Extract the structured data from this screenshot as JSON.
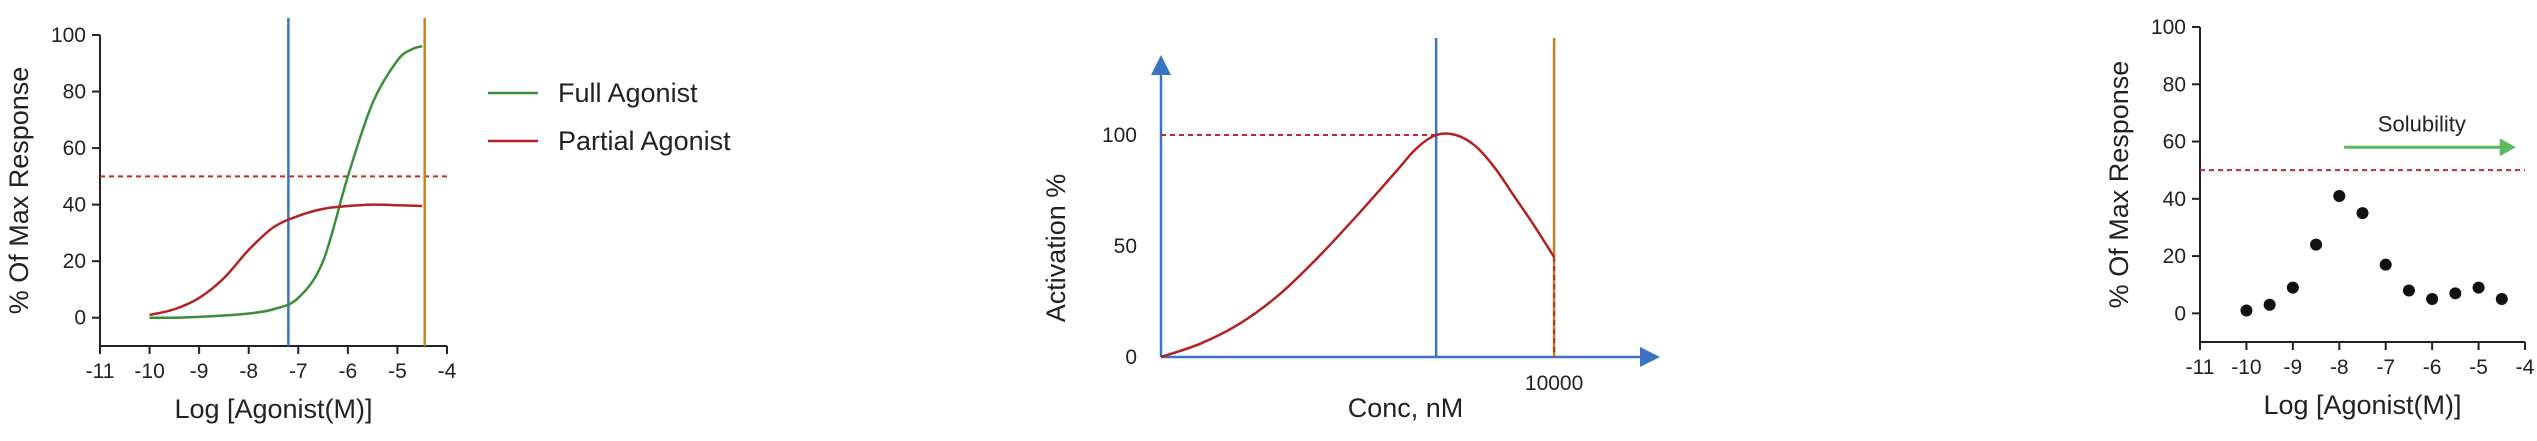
{
  "colors": {
    "full": "#3a8f3a",
    "partial": "#b22222",
    "blue": "#3b73c4",
    "orange": "#c8811f",
    "ref": "#c0282d",
    "green_arrow": "#5cb85c",
    "points": "#111111",
    "axis": "#222222"
  },
  "chart_data": [
    {
      "type": "line",
      "xlabel": "Log [Agonist(M)]",
      "ylabel": "% Of Max Response",
      "xlim": [
        -11,
        -4
      ],
      "ylim": [
        -10,
        100
      ],
      "xticks": [
        -11,
        -10,
        -9,
        -8,
        -7,
        -6,
        -5,
        -4
      ],
      "yticks": [
        0,
        20,
        40,
        60,
        80,
        100
      ],
      "legend_position": "right",
      "series": [
        {
          "name": "Full Agonist",
          "x": [
            -10.0,
            -9.5,
            -9.0,
            -8.5,
            -8.0,
            -7.5,
            -7.0,
            -6.5,
            -6.0,
            -5.5,
            -5.0,
            -4.7,
            -4.5
          ],
          "y": [
            0,
            0,
            0.3,
            0.8,
            1.5,
            3,
            7,
            20,
            50,
            76,
            91,
            95,
            96
          ]
        },
        {
          "name": "Partial Agonist",
          "x": [
            -10.0,
            -9.5,
            -9.0,
            -8.5,
            -8.0,
            -7.5,
            -7.0,
            -6.5,
            -6.0,
            -5.5,
            -5.0,
            -4.5
          ],
          "y": [
            1,
            3,
            7,
            14,
            24,
            32,
            36,
            38.5,
            39.5,
            40,
            39.8,
            39.5
          ]
        }
      ],
      "reference_lines": {
        "horizontal_y": 50,
        "vertical_blue_x": -7.2,
        "vertical_orange_x": -4.45
      }
    },
    {
      "type": "line",
      "xlabel": "Conc, nM",
      "ylabel": "Activation %",
      "xticks": [
        "10000"
      ],
      "yticks": [
        0,
        50,
        100
      ],
      "xlim": [
        0,
        11600
      ],
      "ylim": [
        0,
        140
      ],
      "series": [
        {
          "x": [
            0,
            1000,
            2000,
            3000,
            4000,
            5000,
            6000,
            6500,
            7000,
            7500,
            8000,
            8500,
            9000,
            9500,
            10000
          ],
          "y": [
            0,
            6,
            15,
            28,
            45,
            64,
            84,
            94,
            100,
            100,
            95,
            85,
            72,
            59,
            45
          ]
        }
      ],
      "reference_lines": {
        "horizontal_y": 100,
        "vertical_blue_x": 7000,
        "vertical_orange_x": 10000
      }
    },
    {
      "type": "scatter",
      "xlabel": "Log [Agonist(M)]",
      "ylabel": "% Of Max Response",
      "xlim": [
        -11,
        -4
      ],
      "ylim": [
        -10,
        100
      ],
      "xticks": [
        -11,
        -10,
        -9,
        -8,
        -7,
        -6,
        -5,
        -4
      ],
      "yticks": [
        0,
        20,
        40,
        60,
        80,
        100
      ],
      "points": {
        "x": [
          -10.0,
          -9.5,
          -9.0,
          -8.5,
          -8.0,
          -7.5,
          -7.0,
          -6.5,
          -6.0,
          -5.5,
          -5.0,
          -4.5
        ],
        "y": [
          1,
          3,
          9,
          24,
          41,
          35,
          17,
          8,
          5,
          7,
          9,
          5
        ]
      },
      "reference_lines": {
        "horizontal_y": 50
      },
      "annotation": {
        "text": "Solubility",
        "arrow_x": [
          -7.9,
          -4.2
        ],
        "arrow_y": 58
      }
    }
  ]
}
